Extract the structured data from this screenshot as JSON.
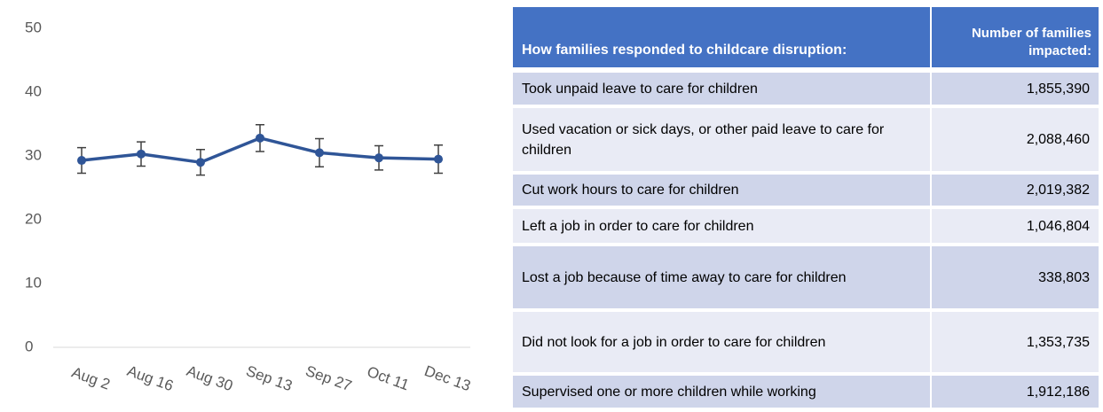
{
  "chart_data": {
    "type": "line",
    "categories": [
      "Aug 2",
      "Aug 16",
      "Aug 30",
      "Sep 13",
      "Sep 27",
      "Oct 11",
      "Dec 13"
    ],
    "series": [
      {
        "color": "#2f5597",
        "values": [
          29.3,
          30.3,
          29.0,
          32.8,
          30.5,
          29.7,
          29.5
        ],
        "errors": [
          2.0,
          1.9,
          2.0,
          2.1,
          2.2,
          1.9,
          2.2
        ],
        "error_color": "#404040"
      }
    ],
    "ylim": [
      0,
      50
    ],
    "yticks": [
      0,
      10,
      20,
      30,
      40,
      50
    ],
    "grid": false
  },
  "table": {
    "header": [
      "How families responded to childcare disruption:",
      "Number of families impacted:"
    ],
    "rows": [
      [
        "Took unpaid leave to care for children",
        "1,855,390"
      ],
      [
        "Used vacation or sick days, or other paid leave to care for children",
        "2,088,460"
      ],
      [
        "Cut work hours to care for children",
        "2,019,382"
      ],
      [
        "Left a job in order to care for children",
        "1,046,804"
      ],
      [
        "Lost a job because of time away to care for children",
        "338,803"
      ],
      [
        "Did not look for a job in order to care for children",
        "1,353,735"
      ],
      [
        "Supervised one or more children while working",
        "1,912,186"
      ]
    ]
  }
}
